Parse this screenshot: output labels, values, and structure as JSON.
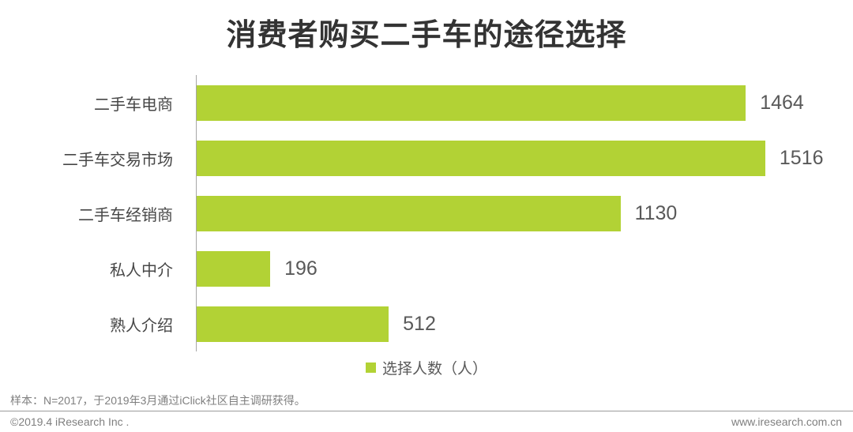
{
  "chart_data": {
    "type": "bar",
    "orientation": "horizontal",
    "title": "消费者购买二手车的途径选择",
    "categories": [
      "二手车电商",
      "二手车交易市场",
      "二手车经销商",
      "私人中介",
      "熟人介绍"
    ],
    "values": [
      1464,
      1516,
      1130,
      196,
      512
    ],
    "series_name": "选择人数（人）",
    "xlabel": "",
    "ylabel": "",
    "xlim": [
      0,
      1750
    ],
    "grid": false,
    "value_labels_shown": true,
    "legend_position": "bottom-center"
  },
  "legend": {
    "label": "选择人数（人）"
  },
  "footer": {
    "sample_note": "样本：N=2017，于2019年3月通过iClick社区自主调研获得。",
    "copyright": "©2019.4 iResearch Inc .",
    "website": "www.iresearch.com.cn"
  },
  "colors": {
    "bar": "#b2d235",
    "background": "#ffffff",
    "title_text": "#333333",
    "category_text": "#474747",
    "value_text": "#595959",
    "axis_line": "#a6a6a6",
    "footer_text": "#7f7f7f",
    "divider": "#9b9b9b"
  }
}
